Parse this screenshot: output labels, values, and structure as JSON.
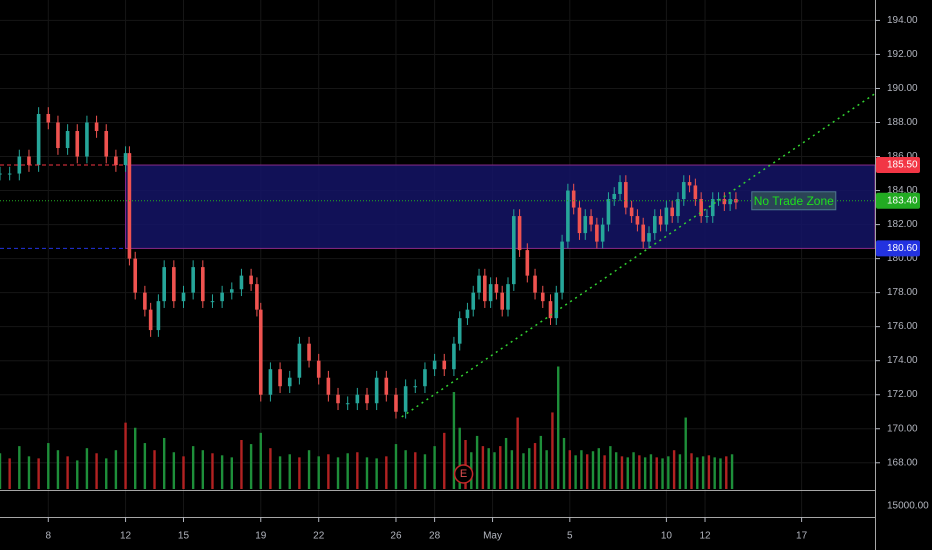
{
  "chart_data": {
    "type": "candlestick",
    "price_axis": {
      "ylim": [
        166.4,
        195.2
      ],
      "ticks": [
        "194.00",
        "192.00",
        "190.00",
        "188.00",
        "186.00",
        "184.00",
        "182.00",
        "180.00",
        "178.00",
        "176.00",
        "174.00",
        "172.00",
        "170.00",
        "168.00"
      ],
      "tick_values": [
        194,
        192,
        190,
        188,
        186,
        184,
        182,
        180,
        178,
        176,
        174,
        172,
        170,
        168
      ]
    },
    "volume_axis": {
      "label": "15000.00"
    },
    "time_axis": {
      "labels": [
        "8",
        "12",
        "15",
        "19",
        "22",
        "26",
        "28",
        "May",
        "5",
        "10",
        "12",
        "17"
      ],
      "label_days": [
        8,
        12,
        15,
        19,
        22,
        26,
        28,
        31,
        35,
        40,
        42,
        47
      ],
      "day_range": [
        5.5,
        50.8
      ]
    },
    "price_badges": [
      {
        "value": 185.5,
        "text": "185.50",
        "color": "#f23645"
      },
      {
        "value": 183.4,
        "text": "183.40",
        "color": "#22ab22"
      },
      {
        "value": 180.6,
        "text": "180.60",
        "color": "#2332e0"
      }
    ],
    "zone": {
      "label": "No Trade Zone",
      "top": 185.5,
      "bottom": 180.6,
      "start_day": 12,
      "end_day": 50.8,
      "fill": "#141466",
      "border": "#8a2a8a"
    },
    "trendline": {
      "from": [
        26.3,
        170.7
      ],
      "to": [
        50.8,
        189.7
      ],
      "color": "#32d232"
    },
    "earnings_marker": {
      "text": "E",
      "day": 29.5
    },
    "series": [
      {
        "day": 5.5,
        "close": 185
      },
      {
        "day": 6,
        "close": 185
      },
      {
        "day": 6.5,
        "close": 186
      },
      {
        "day": 7,
        "close": 185.5
      },
      {
        "day": 7.5,
        "close": 188.5
      },
      {
        "day": 8,
        "close": 188
      },
      {
        "day": 8.5,
        "close": 186.5
      },
      {
        "day": 9,
        "close": 187.5
      },
      {
        "day": 9.5,
        "close": 186
      },
      {
        "day": 10,
        "close": 188
      },
      {
        "day": 10.5,
        "close": 187.5
      },
      {
        "day": 11,
        "close": 186
      },
      {
        "day": 11.5,
        "close": 185.5
      },
      {
        "day": 12,
        "close": 186.2
      },
      {
        "day": 12.2,
        "close": 180
      },
      {
        "day": 12.5,
        "close": 178
      },
      {
        "day": 13,
        "close": 177
      },
      {
        "day": 13.3,
        "close": 175.8
      },
      {
        "day": 13.7,
        "close": 177.5
      },
      {
        "day": 14,
        "close": 179.5
      },
      {
        "day": 14.5,
        "close": 177.5
      },
      {
        "day": 15,
        "close": 178
      },
      {
        "day": 15.5,
        "close": 179.5
      },
      {
        "day": 16,
        "close": 177.5
      },
      {
        "day": 16.5,
        "close": 177.5
      },
      {
        "day": 17,
        "close": 178
      },
      {
        "day": 17.5,
        "close": 178.2
      },
      {
        "day": 18,
        "close": 179
      },
      {
        "day": 18.5,
        "close": 178.5
      },
      {
        "day": 18.8,
        "close": 177
      },
      {
        "day": 19,
        "close": 172
      },
      {
        "day": 19.5,
        "close": 173.5
      },
      {
        "day": 20,
        "close": 172.5
      },
      {
        "day": 20.5,
        "close": 173
      },
      {
        "day": 21,
        "close": 175
      },
      {
        "day": 21.5,
        "close": 174
      },
      {
        "day": 22,
        "close": 173
      },
      {
        "day": 22.5,
        "close": 172
      },
      {
        "day": 23,
        "close": 171.5
      },
      {
        "day": 23.5,
        "close": 171.5
      },
      {
        "day": 24,
        "close": 172
      },
      {
        "day": 24.5,
        "close": 171.5
      },
      {
        "day": 25,
        "close": 173
      },
      {
        "day": 25.5,
        "close": 172
      },
      {
        "day": 26,
        "close": 171
      },
      {
        "day": 26.5,
        "close": 172.5
      },
      {
        "day": 27,
        "close": 172.5
      },
      {
        "day": 27.5,
        "close": 173.5
      },
      {
        "day": 28,
        "close": 174
      },
      {
        "day": 28.5,
        "close": 173.5
      },
      {
        "day": 29,
        "close": 175
      },
      {
        "day": 29.3,
        "close": 176.5
      },
      {
        "day": 29.7,
        "close": 177
      },
      {
        "day": 30,
        "close": 178
      },
      {
        "day": 30.3,
        "close": 179
      },
      {
        "day": 30.6,
        "close": 177.5
      },
      {
        "day": 30.9,
        "close": 178.5
      },
      {
        "day": 31.2,
        "close": 178
      },
      {
        "day": 31.5,
        "close": 177
      },
      {
        "day": 31.8,
        "close": 178.5
      },
      {
        "day": 32.1,
        "close": 182.5
      },
      {
        "day": 32.4,
        "close": 180.5
      },
      {
        "day": 32.8,
        "close": 179
      },
      {
        "day": 33.2,
        "close": 178
      },
      {
        "day": 33.6,
        "close": 177.5
      },
      {
        "day": 34,
        "close": 176.5
      },
      {
        "day": 34.3,
        "close": 178
      },
      {
        "day": 34.6,
        "close": 181
      },
      {
        "day": 34.9,
        "close": 184
      },
      {
        "day": 35.2,
        "close": 183
      },
      {
        "day": 35.5,
        "close": 181.5
      },
      {
        "day": 35.8,
        "close": 182.5
      },
      {
        "day": 36.1,
        "close": 182
      },
      {
        "day": 36.4,
        "close": 181
      },
      {
        "day": 36.7,
        "close": 182
      },
      {
        "day": 37,
        "close": 183.5
      },
      {
        "day": 37.3,
        "close": 183.8
      },
      {
        "day": 37.6,
        "close": 184.5
      },
      {
        "day": 37.9,
        "close": 183
      },
      {
        "day": 38.2,
        "close": 182.5
      },
      {
        "day": 38.5,
        "close": 182
      },
      {
        "day": 38.8,
        "close": 181
      },
      {
        "day": 39.1,
        "close": 181.5
      },
      {
        "day": 39.4,
        "close": 182.5
      },
      {
        "day": 39.7,
        "close": 182
      },
      {
        "day": 40,
        "close": 183
      },
      {
        "day": 40.3,
        "close": 182.5
      },
      {
        "day": 40.6,
        "close": 183.5
      },
      {
        "day": 40.9,
        "close": 184.5
      },
      {
        "day": 41.2,
        "close": 184.3
      },
      {
        "day": 41.5,
        "close": 183.5
      },
      {
        "day": 41.8,
        "close": 182.5
      },
      {
        "day": 42.1,
        "close": 182.5
      },
      {
        "day": 42.4,
        "close": 183.5
      },
      {
        "day": 42.7,
        "close": 183.5
      },
      {
        "day": 43,
        "close": 183.2
      },
      {
        "day": 43.3,
        "close": 183.5
      },
      {
        "day": 43.6,
        "close": 183.3
      }
    ],
    "volume_days": [
      5.5,
      6,
      6.5,
      7,
      7.5,
      8,
      8.5,
      9,
      9.5,
      10,
      10.5,
      11,
      11.5,
      12,
      12.5,
      13,
      13.5,
      14,
      14.5,
      15,
      15.5,
      16,
      16.5,
      17,
      17.5,
      18,
      18.5,
      19,
      19.5,
      20,
      20.5,
      21,
      21.5,
      22,
      22.5,
      23,
      23.5,
      24,
      24.5,
      25,
      25.5,
      26,
      26.5,
      27,
      27.5,
      28,
      28.5,
      29,
      29.3,
      29.6,
      29.9,
      30.2,
      30.5,
      30.8,
      31.1,
      31.4,
      31.7,
      32,
      32.3,
      32.6,
      32.9,
      33.2,
      33.5,
      33.8,
      34.1,
      34.4,
      34.7,
      35,
      35.3,
      35.6,
      35.9,
      36.2,
      36.5,
      36.8,
      37.1,
      37.4,
      37.7,
      38,
      38.3,
      38.6,
      38.9,
      39.2,
      39.5,
      39.8,
      40.1,
      40.4,
      40.7,
      41,
      41.3,
      41.6,
      41.9,
      42.2,
      42.5,
      42.8,
      43.1,
      43.4
    ],
    "volumes": [
      3500,
      3000,
      4200,
      3200,
      3000,
      4500,
      3800,
      3200,
      2800,
      4000,
      3500,
      3000,
      3800,
      6500,
      6000,
      4500,
      3800,
      5000,
      3600,
      3200,
      4200,
      3800,
      3500,
      3300,
      3100,
      4800,
      4400,
      5500,
      4000,
      3200,
      3400,
      3100,
      3800,
      3200,
      3400,
      3100,
      3500,
      3600,
      3100,
      3000,
      3200,
      4400,
      3800,
      3600,
      3400,
      4200,
      5500,
      9500,
      6000,
      4800,
      3600,
      5200,
      4200,
      4000,
      3600,
      4200,
      5000,
      3800,
      7000,
      3500,
      4000,
      4500,
      5200,
      3800,
      7500,
      12000,
      5000,
      3800,
      3300,
      3800,
      3400,
      3700,
      4000,
      3300,
      4200,
      3600,
      3200,
      3100,
      3600,
      3300,
      3100,
      3400,
      3100,
      3000,
      3200,
      3800,
      3400,
      7000,
      3500,
      3100,
      3200,
      3300,
      3100,
      3000,
      3200,
      3400
    ],
    "volume_ylim": [
      0,
      48000
    ]
  }
}
